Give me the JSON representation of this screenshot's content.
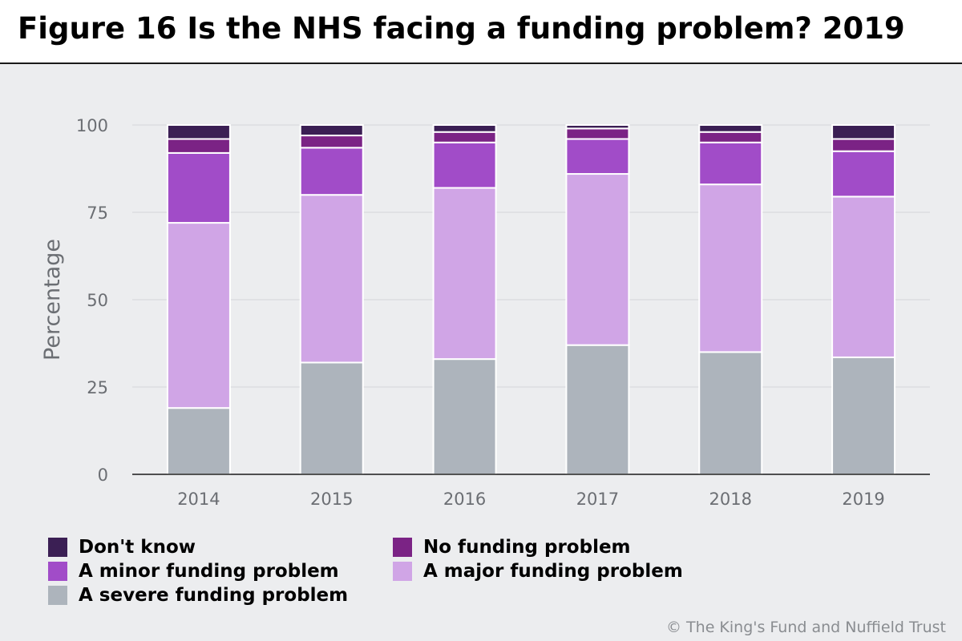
{
  "header": {
    "title": "Figure 16 Is the NHS facing a funding problem? 2019"
  },
  "credit": "© The King's Fund and Nuffield Trust",
  "colors": {
    "dont_know": "#3b1f54",
    "no_problem": "#7b2385",
    "minor": "#a14cc8",
    "major": "#d0a5e6",
    "severe": "#adb4bc",
    "background": "#ecedef",
    "gridline": "#e0e1e4"
  },
  "chart_data": {
    "type": "bar",
    "stacked": true,
    "categories": [
      "2014",
      "2015",
      "2016",
      "2017",
      "2018",
      "2019"
    ],
    "ylabel": "Percentage",
    "xlabel": "",
    "ylim": [
      0,
      100
    ],
    "yticks": [
      "0",
      "25",
      "50",
      "75",
      "100"
    ],
    "grid": true,
    "legend_position": "bottom",
    "series": [
      {
        "name": "A severe funding problem",
        "color": "#adb4bc",
        "values": [
          19,
          32,
          33,
          37,
          35,
          33.5
        ]
      },
      {
        "name": "A major funding problem",
        "color": "#d0a5e6",
        "values": [
          53,
          48,
          49,
          49,
          48,
          46
        ]
      },
      {
        "name": "A minor funding problem",
        "color": "#a14cc8",
        "values": [
          20,
          13.5,
          13,
          10,
          12,
          13
        ]
      },
      {
        "name": "No funding problem",
        "color": "#7b2385",
        "values": [
          4,
          3.5,
          3,
          3,
          3,
          3.5
        ]
      },
      {
        "name": "Don't know",
        "color": "#3b1f54",
        "values": [
          4,
          3,
          2,
          1,
          2,
          4
        ]
      }
    ]
  },
  "legend": [
    {
      "label": "Don't know",
      "color": "#3b1f54"
    },
    {
      "label": "No funding problem",
      "color": "#7b2385"
    },
    {
      "label": "A minor funding problem",
      "color": "#a14cc8"
    },
    {
      "label": "A major funding problem",
      "color": "#d0a5e6"
    },
    {
      "label": "A severe funding problem",
      "color": "#adb4bc"
    }
  ]
}
